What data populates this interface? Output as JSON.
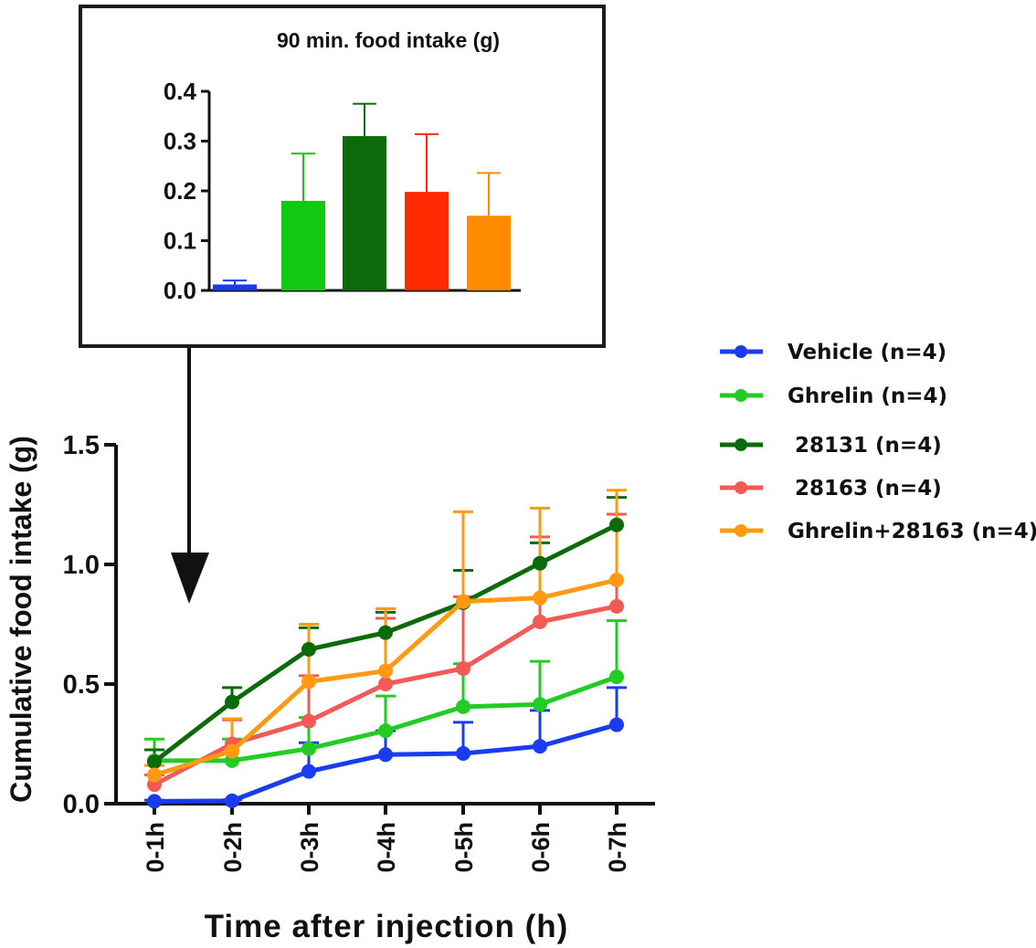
{
  "chart_data": [
    {
      "id": "inset",
      "type": "bar",
      "title": "90 min. food intake (g)",
      "xlabel": "",
      "ylabel": "",
      "ylim": [
        0,
        0.4
      ],
      "yticks": [
        "0.0",
        "0.1",
        "0.2",
        "0.3",
        "0.4"
      ],
      "grid": false,
      "bars": [
        {
          "name": "Vehicle",
          "value": 0.012,
          "error": 0.008,
          "color": "#1a3cf0"
        },
        {
          "name": "Ghrelin",
          "value": 0.18,
          "error": 0.095,
          "color": "#11c911"
        },
        {
          "name": "28131",
          "value": 0.31,
          "error": 0.065,
          "color": "#0b6b0b"
        },
        {
          "name": "28163",
          "value": 0.198,
          "error": 0.116,
          "color": "#ff2a00"
        },
        {
          "name": "Ghrelin+28163",
          "value": 0.15,
          "error": 0.086,
          "color": "#ff8c00"
        }
      ]
    },
    {
      "id": "main",
      "type": "line",
      "title": "",
      "xlabel": "Time after injection (h)",
      "ylabel": "Cumulative food intake (g)",
      "categories": [
        "0-1h",
        "0-2h",
        "0-3h",
        "0-4h",
        "0-5h",
        "0-6h",
        "0-7h"
      ],
      "ylim": [
        0,
        1.5
      ],
      "yticks": [
        "0.0",
        "0.5",
        "1.0",
        "1.5"
      ],
      "grid": false,
      "legend_position": "right",
      "series": [
        {
          "name": "Vehicle (n=4)",
          "color": "#1a3cf0",
          "values": [
            0.01,
            0.012,
            0.135,
            0.205,
            0.21,
            0.24,
            0.33
          ],
          "errors": [
            0.005,
            0.004,
            0.12,
            0.1,
            0.13,
            0.15,
            0.155
          ]
        },
        {
          "name": "Ghrelin (n=4)",
          "color": "#22cc22",
          "values": [
            0.18,
            0.18,
            0.23,
            0.305,
            0.405,
            0.415,
            0.53
          ],
          "errors": [
            0.09,
            0.09,
            0.13,
            0.145,
            0.18,
            0.18,
            0.235
          ]
        },
        {
          "name": "28131 (n=4)",
          "color": "#0b6b0b",
          "values": [
            0.175,
            0.425,
            0.645,
            0.715,
            0.84,
            1.005,
            1.165
          ],
          "errors": [
            0.05,
            0.06,
            0.09,
            0.085,
            0.135,
            0.085,
            0.115
          ]
        },
        {
          "name": "28163 (n=4)",
          "color": "#f25a57",
          "values": [
            0.08,
            0.25,
            0.345,
            0.5,
            0.565,
            0.76,
            0.825
          ],
          "errors": [
            0.04,
            0.1,
            0.19,
            0.275,
            0.3,
            0.355,
            0.385
          ]
        },
        {
          "name": "Ghrelin+28163 (n=4)",
          "color": "#ff9a12",
          "values": [
            0.12,
            0.22,
            0.51,
            0.555,
            0.845,
            0.86,
            0.935
          ],
          "errors": [
            0.04,
            0.135,
            0.24,
            0.26,
            0.375,
            0.375,
            0.375
          ]
        }
      ]
    }
  ],
  "legend": [
    "Vehicle (n=4)",
    "Ghrelin (n=4)",
    " 28131 (n=4)",
    " 28163 (n=4)",
    "Ghrelin+28163 (n=4)"
  ]
}
